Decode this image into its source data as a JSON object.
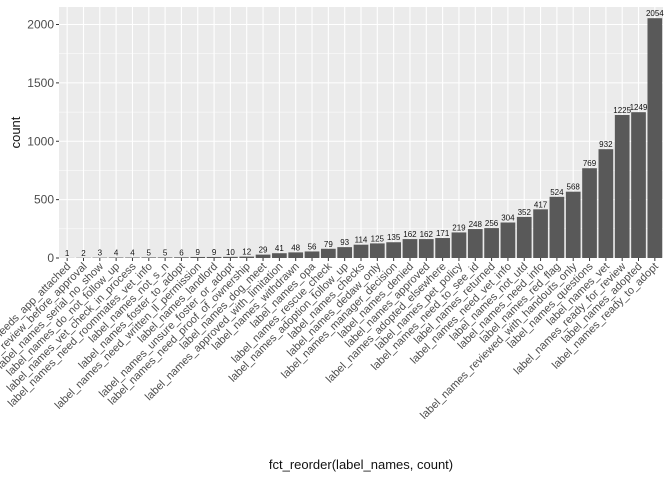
{
  "chart_data": {
    "type": "bar",
    "title": "",
    "xlabel": "fct_reorder(label_names, count)",
    "ylabel": "count",
    "ylim": [
      0,
      2150
    ],
    "yticks": [
      0,
      500,
      1000,
      1500,
      2000
    ],
    "grid": true,
    "categories": [
      "label_names_needs_app_attached",
      "label_names_review_before_approval",
      "label_names_serial_no_show",
      "label_names_do_not_follow_up",
      "label_names_vet_check_in_process",
      "label_names_need_roommates_vet_info",
      "label_names_not_s_n",
      "label_names_foster_to_adopt",
      "label_names_need_written_ll_permission",
      "label_names_landlord",
      "label_names_unsure_foster_or_adopt",
      "label_names_need_proof_of_ownership",
      "label_names_dog_meet",
      "label_names_approved_with_limitation",
      "label_names_withdrawn",
      "label_names_opa",
      "label_names_rescue_check",
      "label_names_adoption_follow_up",
      "label_names_checks",
      "label_names_dedaw_only",
      "label_names_manager_decision",
      "label_names_denied",
      "label_names_approved",
      "label_names_adopted_elsewhere",
      "label_names_pet_policy",
      "label_names_need_to_see_id",
      "label_names_returned",
      "label_names_need_vet_info",
      "label_names_not_utd",
      "label_names_need_info",
      "label_names_red_flag",
      "label_names_reviewed_with_handouts_only",
      "label_names_questions",
      "label_names_vet",
      "label_names_ready_for_review",
      "label_names_adopted",
      "label_names_ready_to_adopt"
    ],
    "values": [
      1,
      2,
      3,
      4,
      4,
      5,
      5,
      6,
      9,
      9,
      10,
      12,
      29,
      41,
      48,
      56,
      79,
      93,
      114,
      125,
      135,
      162,
      162,
      171,
      219,
      248,
      256,
      304,
      352,
      417,
      524,
      568,
      769,
      932,
      1225,
      1249,
      2054
    ],
    "bar_color": "#595959",
    "panel_background": "#ebebeb",
    "grid_color": "#ffffff"
  }
}
